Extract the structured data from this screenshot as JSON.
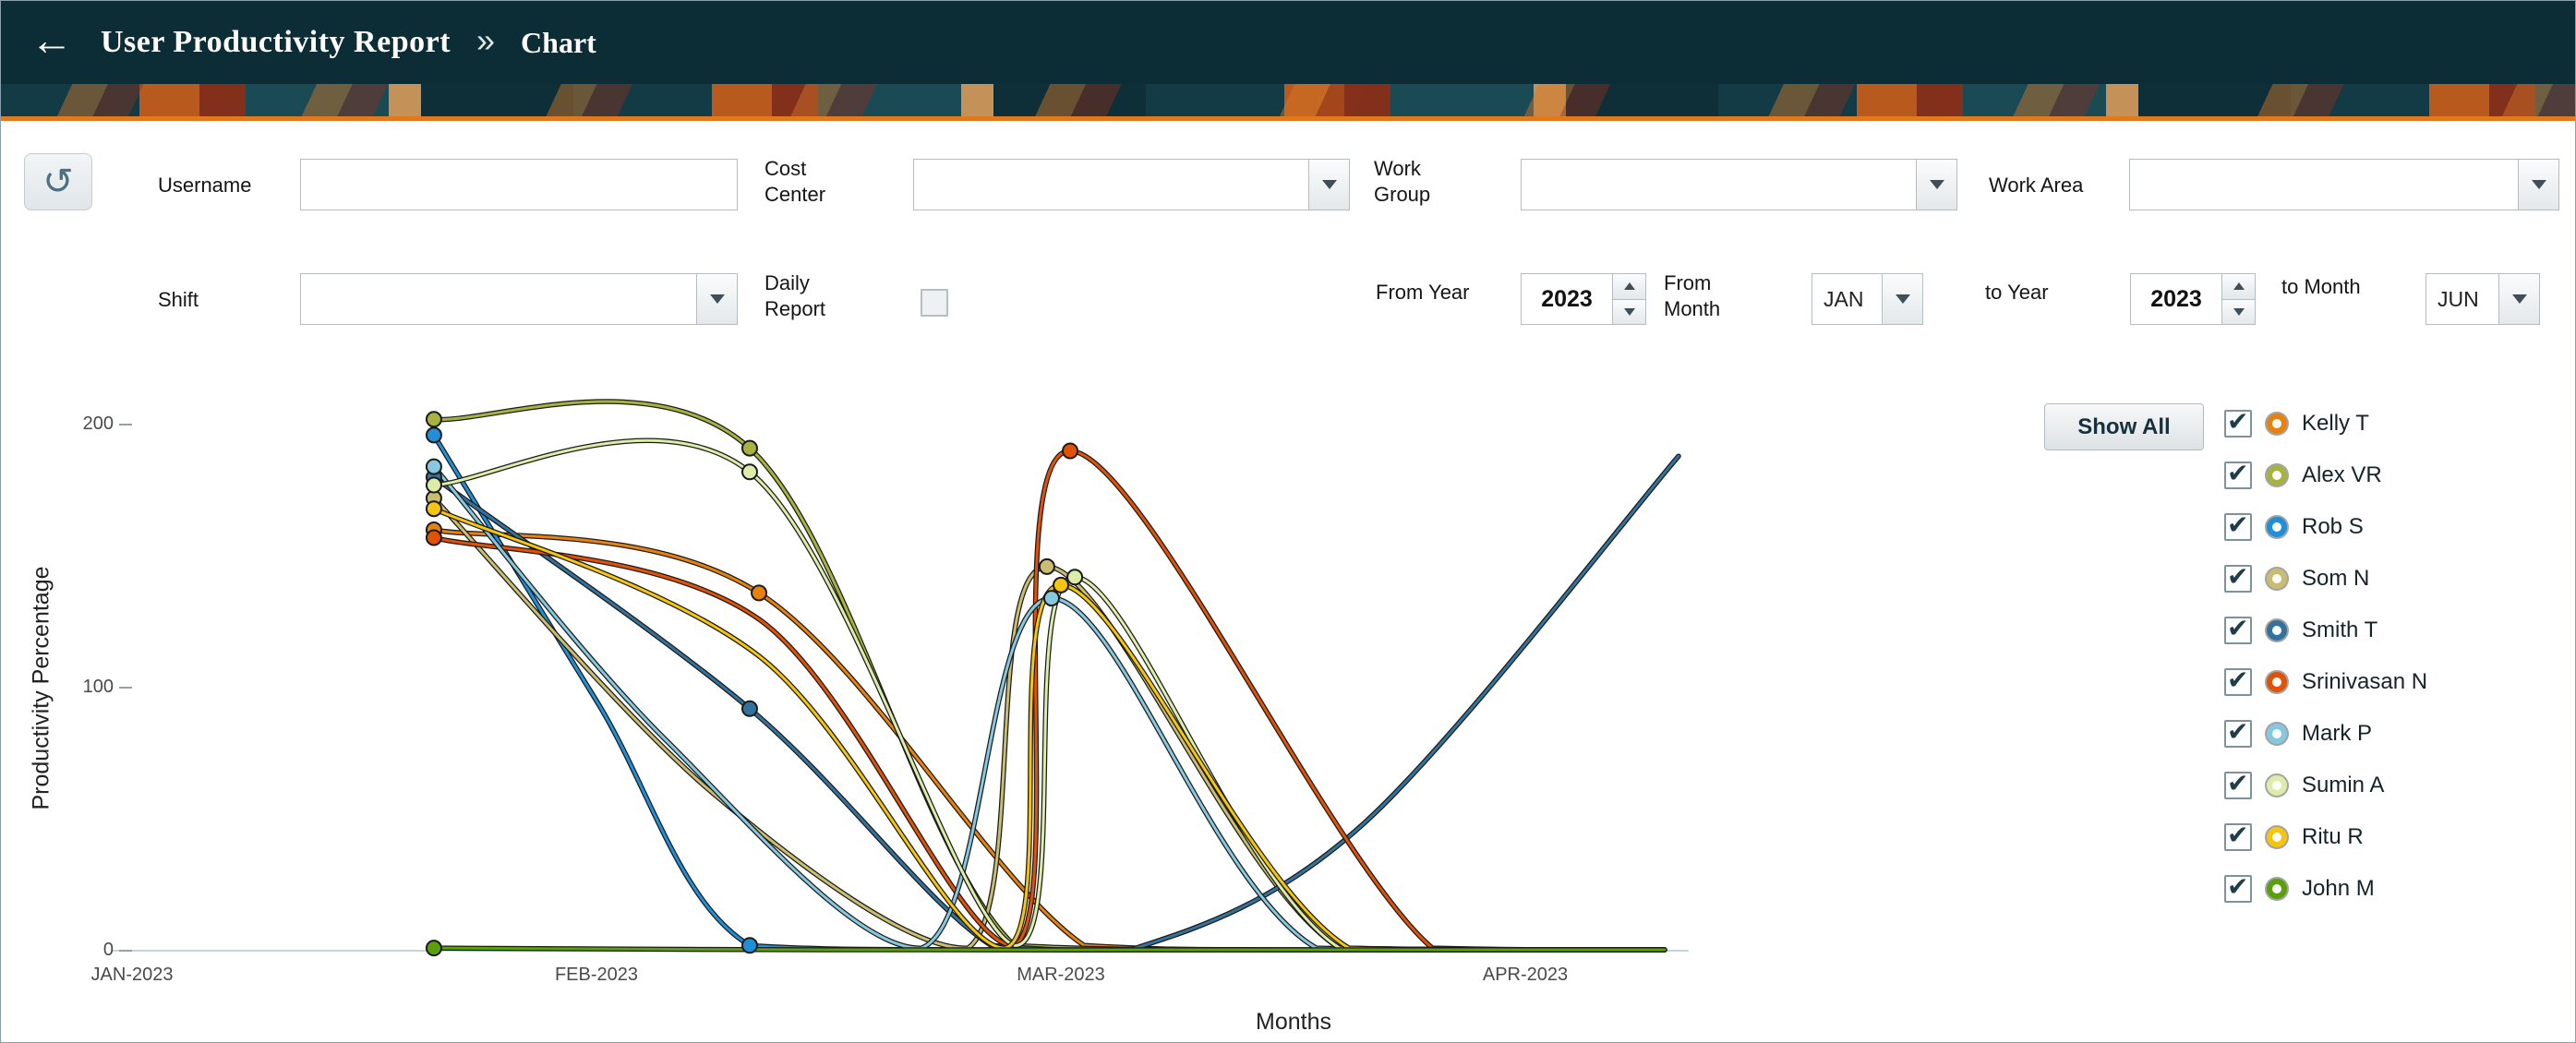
{
  "header": {
    "back_icon": "←",
    "title": "User Productivity Report",
    "separator_icon": "»",
    "subtitle": "Chart"
  },
  "filters": {
    "username": {
      "label": "Username",
      "value": ""
    },
    "cost_center": {
      "label": "Cost Center",
      "value": ""
    },
    "work_group": {
      "label": "Work Group",
      "value": ""
    },
    "work_area": {
      "label": "Work Area",
      "value": ""
    },
    "shift": {
      "label": "Shift",
      "value": ""
    },
    "daily_report": {
      "label": "Daily Report",
      "checked": false
    },
    "from_year": {
      "label": "From Year",
      "value": "2023"
    },
    "from_month": {
      "label": "From Month",
      "value": "JAN"
    },
    "to_year": {
      "label": "to Year",
      "value": "2023"
    },
    "to_month": {
      "label": "to Month",
      "value": "JUN"
    }
  },
  "legend": {
    "show_all_label": "Show All",
    "items": [
      {
        "name": "Kelly T",
        "color": "#e8820f",
        "checked": true
      },
      {
        "name": "Alex VR",
        "color": "#a8b23e",
        "checked": true
      },
      {
        "name": "Rob S",
        "color": "#1f90d8",
        "checked": true
      },
      {
        "name": "Som N",
        "color": "#c9bd72",
        "checked": true
      },
      {
        "name": "Smith T",
        "color": "#33729c",
        "checked": true
      },
      {
        "name": "Srinivasan N",
        "color": "#e05206",
        "checked": true
      },
      {
        "name": "Mark P",
        "color": "#86c8df",
        "checked": true
      },
      {
        "name": "Sumin A",
        "color": "#dcedaa",
        "checked": true
      },
      {
        "name": "Ritu R",
        "color": "#f6c50e",
        "checked": true
      },
      {
        "name": "John M",
        "color": "#5aa00a",
        "checked": true
      }
    ]
  },
  "chart_data": {
    "type": "line",
    "title": "",
    "xlabel": "Months",
    "ylabel": "Productivity Percentage",
    "x_ticks": [
      "JAN-2023",
      "FEB-2023",
      "MAR-2023",
      "APR-2023"
    ],
    "y_ticks": [
      "0",
      "100",
      "200"
    ],
    "xlim": [
      0,
      3.35
    ],
    "ylim": [
      0,
      215
    ],
    "x_unit": "months offset from JAN-2023 tick",
    "grid": false,
    "legend_position": "right",
    "series": [
      {
        "name": "Kelly T",
        "color": "#e8820f",
        "points": [
          [
            0.65,
            160,
            1
          ],
          [
            1.35,
            136,
            1
          ],
          [
            2.05,
            2,
            0
          ],
          [
            2.5,
            0,
            0
          ],
          [
            3.3,
            0,
            0
          ]
        ]
      },
      {
        "name": "Alex VR",
        "color": "#a8b23e",
        "points": [
          [
            0.65,
            202,
            1
          ],
          [
            1.33,
            191,
            1
          ],
          [
            1.9,
            2,
            0
          ],
          [
            2.5,
            0,
            0
          ],
          [
            3.3,
            0,
            0
          ]
        ]
      },
      {
        "name": "Rob S",
        "color": "#1f90d8",
        "points": [
          [
            0.65,
            196,
            1
          ],
          [
            1.0,
            95,
            0
          ],
          [
            1.33,
            2,
            1
          ],
          [
            1.9,
            0,
            0
          ],
          [
            2.6,
            0,
            0
          ],
          [
            3.3,
            0,
            0
          ]
        ]
      },
      {
        "name": "Som N",
        "color": "#c9bd72",
        "points": [
          [
            0.65,
            172,
            1
          ],
          [
            1.25,
            60,
            0
          ],
          [
            1.8,
            1,
            0
          ],
          [
            1.97,
            146,
            1
          ],
          [
            2.6,
            1,
            0
          ],
          [
            3.3,
            0,
            0
          ]
        ]
      },
      {
        "name": "Smith T",
        "color": "#33729c",
        "points": [
          [
            0.65,
            180,
            1
          ],
          [
            1.33,
            92,
            1
          ],
          [
            1.85,
            2,
            0
          ],
          [
            2.15,
            0,
            0
          ],
          [
            2.65,
            48,
            0
          ],
          [
            3.33,
            188,
            0
          ]
        ]
      },
      {
        "name": "Srinivasan N",
        "color": "#e05206",
        "points": [
          [
            0.65,
            157,
            1
          ],
          [
            1.35,
            126,
            0
          ],
          [
            1.9,
            2,
            0
          ],
          [
            2.02,
            190,
            1
          ],
          [
            2.8,
            1,
            0
          ],
          [
            3.3,
            0,
            0
          ]
        ]
      },
      {
        "name": "Mark P",
        "color": "#86c8df",
        "points": [
          [
            0.65,
            184,
            1
          ],
          [
            1.15,
            80,
            0
          ],
          [
            1.7,
            1,
            0
          ],
          [
            1.98,
            134,
            1
          ],
          [
            2.55,
            1,
            0
          ],
          [
            3.3,
            0,
            0
          ]
        ]
      },
      {
        "name": "Sumin A",
        "color": "#dcedaa",
        "points": [
          [
            0.65,
            177,
            1
          ],
          [
            1.33,
            182,
            1
          ],
          [
            1.9,
            2,
            0
          ],
          [
            2.03,
            142,
            1
          ],
          [
            2.6,
            1,
            0
          ],
          [
            3.3,
            0,
            0
          ]
        ]
      },
      {
        "name": "Ritu R",
        "color": "#f6c50e",
        "points": [
          [
            0.65,
            168,
            1
          ],
          [
            1.35,
            112,
            0
          ],
          [
            1.88,
            1,
            0
          ],
          [
            2.0,
            139,
            1
          ],
          [
            2.62,
            1,
            0
          ],
          [
            3.3,
            0,
            0
          ]
        ]
      },
      {
        "name": "John M",
        "color": "#5aa00a",
        "points": [
          [
            0.65,
            1,
            1
          ],
          [
            1.5,
            0,
            0
          ],
          [
            2.5,
            0,
            0
          ],
          [
            3.3,
            0,
            0
          ]
        ]
      }
    ]
  }
}
